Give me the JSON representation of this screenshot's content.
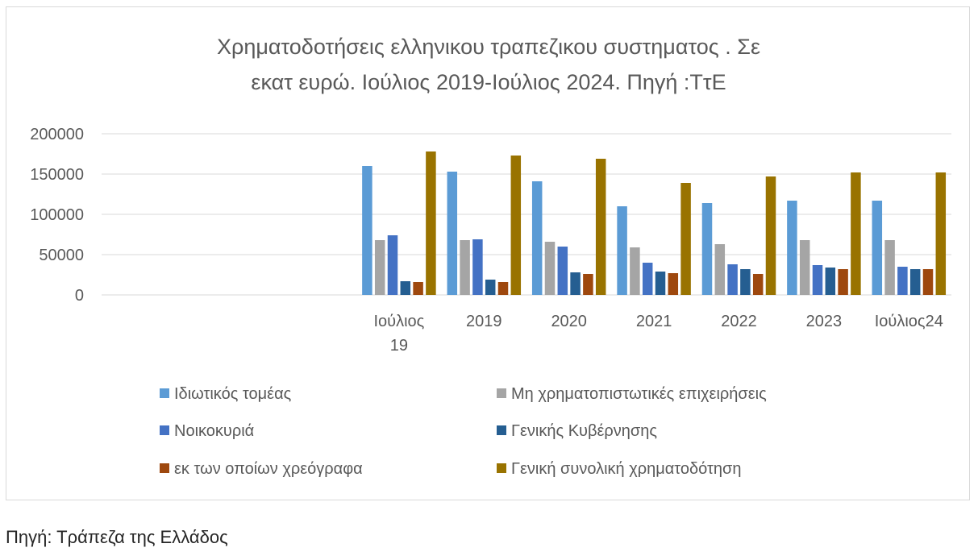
{
  "chart_data": {
    "type": "bar",
    "title_lines": [
      "Χρηματοδοτήσεις ελληνικου τραπεζικου συστηματος . Σε",
      "εκατ ευρώ. Ιούλιος 2019-Ιούλιος 2024. Πηγή :ΤτΕ"
    ],
    "categories": [
      [
        "Ιούλιος",
        "19"
      ],
      [
        "2019"
      ],
      [
        "2020"
      ],
      [
        "2021"
      ],
      [
        "2022"
      ],
      [
        "2023"
      ],
      [
        "Ιούλιος24"
      ]
    ],
    "empty_leading_categories": 3,
    "ylim": [
      0,
      200000
    ],
    "yticks": [
      "0",
      "50000",
      "100000",
      "150000",
      "200000"
    ],
    "ytick_values": [
      0,
      50000,
      100000,
      150000,
      200000
    ],
    "grid": true,
    "legend_position": "bottom",
    "series": [
      {
        "name": "Ιδιωτικός τομέας",
        "color": "#5b9bd5",
        "values": [
          160000,
          153000,
          141000,
          110000,
          114000,
          117000,
          117000
        ]
      },
      {
        "name": "Μη χρηματοπιστωτικές επιχειρήσεις",
        "color": "#a5a5a5",
        "values": [
          68000,
          68000,
          66000,
          59000,
          63000,
          68000,
          68000
        ]
      },
      {
        "name": "Νοικοκυριά",
        "color": "#4472c4",
        "values": [
          74000,
          69000,
          60000,
          40000,
          38000,
          37000,
          35000
        ]
      },
      {
        "name": "Γενικής Κυβέρνησης",
        "color": "#255e91",
        "values": [
          17000,
          19000,
          28000,
          29000,
          32000,
          34000,
          32000
        ]
      },
      {
        "name": "εκ των οποίων χρεόγραφα",
        "color": "#9e480e",
        "values": [
          16000,
          16000,
          26000,
          27000,
          26000,
          32000,
          32000
        ]
      },
      {
        "name": "Γενική συνολική χρηματοδότηση",
        "color": "#997300",
        "values": [
          178000,
          173000,
          169000,
          139000,
          147000,
          152000,
          152000
        ]
      }
    ]
  },
  "footer": {
    "source_note": "Πηγή: Τράπεζα της Ελλάδος"
  }
}
